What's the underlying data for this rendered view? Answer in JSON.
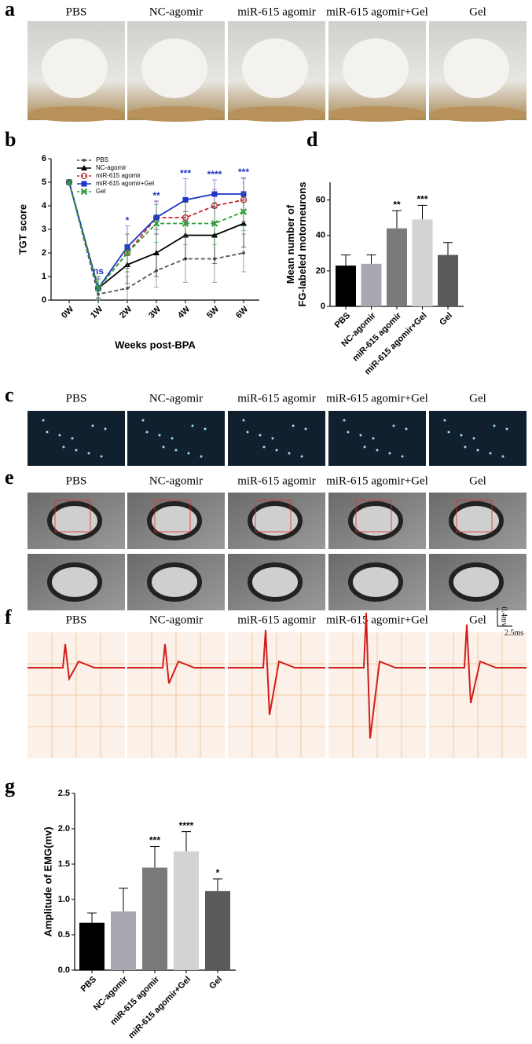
{
  "photo_panels": [
    {
      "label": "a",
      "captions": [
        "PBS",
        "NC-agomir",
        "miR-615 agomir",
        "miR-615 agomir+Gel",
        "Gel"
      ]
    },
    {
      "label": "c",
      "captions": [
        "PBS",
        "NC-agomir",
        "miR-615 agomir",
        "miR-615 agomir+Gel",
        "Gel"
      ]
    },
    {
      "label": "e",
      "captions": [
        "PBS",
        "NC-agomir",
        "miR-615 agomir",
        "miR-615 agomir+Gel",
        "Gel"
      ]
    },
    {
      "label": "f",
      "captions": [
        "PBS",
        "NC-agomir",
        "miR-615 agomir",
        "miR-615 agomir+Gel",
        "Gel"
      ],
      "scale_labels": [
        "0.4mv",
        "2.5ms"
      ]
    }
  ],
  "chart_data": [
    {
      "panel_label": "b",
      "type": "line",
      "ylabel": "TGT score",
      "xlabel": "Weeks post-BPA",
      "categories": [
        "0W",
        "1W",
        "2W",
        "3W",
        "4W",
        "5W",
        "6W"
      ],
      "series": [
        {
          "name": "PBS",
          "color": "#555555",
          "marker": "dot",
          "dashed": true,
          "values": [
            5,
            0.25,
            0.5,
            1.25,
            1.75,
            1.75,
            2.0
          ],
          "errors": [
            0,
            0.2,
            0.5,
            0.7,
            1.0,
            1.0,
            0.8
          ]
        },
        {
          "name": "NC-agomir",
          "color": "#000000",
          "marker": "triangle",
          "dashed": false,
          "values": [
            5,
            0.5,
            1.5,
            2.0,
            2.75,
            2.75,
            3.25
          ],
          "errors": [
            0,
            0.4,
            0.8,
            1.0,
            1.0,
            1.2,
            1.0
          ]
        },
        {
          "name": "miR-615 agomir",
          "color": "#c0282d",
          "marker": "circle",
          "dashed": true,
          "values": [
            5,
            0.5,
            2.0,
            3.5,
            3.5,
            4.0,
            4.25
          ],
          "errors": [
            0,
            0.5,
            0.8,
            0.7,
            0.8,
            0.7,
            0.9
          ]
        },
        {
          "name": "miR-615 agomir+Gel",
          "color": "#1f35c4",
          "marker": "square",
          "dashed": false,
          "values": [
            5,
            0.5,
            2.25,
            3.5,
            4.25,
            4.5,
            4.5
          ],
          "errors": [
            0,
            0.5,
            0.9,
            0.7,
            0.9,
            0.6,
            0.7
          ]
        },
        {
          "name": "Gel",
          "color": "#2e9e3a",
          "marker": "x",
          "dashed": true,
          "values": [
            5,
            0.5,
            2.0,
            3.25,
            3.25,
            3.25,
            3.75
          ],
          "errors": [
            0,
            0.5,
            0.8,
            0.8,
            0.9,
            0.9,
            0.8
          ]
        }
      ],
      "annotations": [
        null,
        "ns",
        "*",
        "**",
        "***",
        "****",
        "***"
      ],
      "annotation_color": "#1f35c4",
      "ylim": [
        0,
        6
      ],
      "yticks": [
        0,
        1,
        2,
        3,
        4,
        5,
        6
      ]
    },
    {
      "panel_label": "d",
      "type": "bar",
      "ylabel": [
        "Mean number of",
        "FG-labeled motorneurons"
      ],
      "categories": [
        "PBS",
        "NC-agomir",
        "miR-615 agomir",
        "miR-615 agomir+Gel",
        "Gel"
      ],
      "values": [
        23,
        24,
        44,
        49,
        29
      ],
      "errors": [
        6,
        5,
        10,
        8,
        7
      ],
      "colors": [
        "#000000",
        "#a9a8b0",
        "#7a7a7a",
        "#d3d3d3",
        "#5a5a5a"
      ],
      "annotations": [
        null,
        null,
        "**",
        "***",
        null
      ],
      "ylim": [
        0,
        70
      ],
      "yticks": [
        0,
        20,
        40,
        60
      ]
    },
    {
      "panel_label": "g",
      "type": "bar",
      "ylabel": [
        "Amplitude of EMG(mv)"
      ],
      "categories": [
        "PBS",
        "NC-agomir",
        "miR-615 agomir",
        "miR-615 agomir+Gel",
        "Gel"
      ],
      "values": [
        0.67,
        0.83,
        1.45,
        1.68,
        1.12
      ],
      "errors": [
        0.14,
        0.33,
        0.3,
        0.28,
        0.17
      ],
      "colors": [
        "#000000",
        "#a9a8b0",
        "#7a7a7a",
        "#d3d3d3",
        "#5a5a5a"
      ],
      "annotations": [
        null,
        null,
        "***",
        "****",
        "*"
      ],
      "ylim": [
        0,
        2.5
      ],
      "yticks": [
        {
          "value": 0,
          "label": "0.0"
        },
        0.5,
        {
          "value": 1,
          "label": "1.0"
        },
        1.5,
        {
          "value": 2,
          "label": "2.0"
        },
        2.5
      ]
    }
  ]
}
